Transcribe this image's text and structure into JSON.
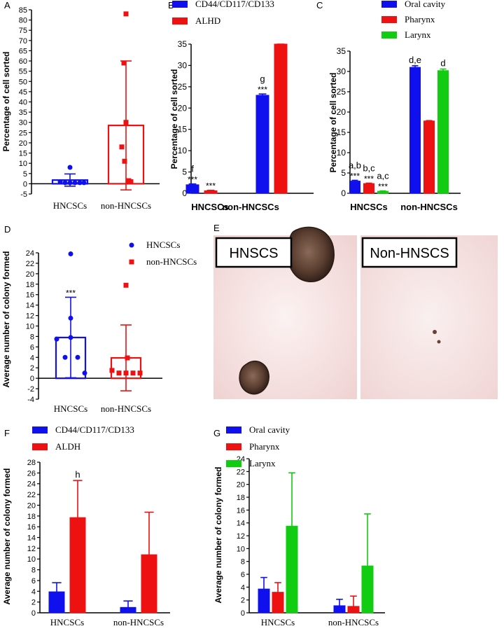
{
  "colors": {
    "blue": "#1010ee",
    "red": "#ee1111",
    "green": "#11cc11",
    "black": "#000000"
  },
  "chart_data": [
    {
      "id": "A",
      "type": "bar",
      "panel_label": "A",
      "ylabel": "Percentage of cell sorted",
      "ylim": [
        -5,
        85
      ],
      "yticks": [
        -5,
        0,
        5,
        10,
        15,
        20,
        25,
        30,
        35,
        40,
        45,
        50,
        55,
        60,
        65,
        70,
        75,
        80,
        85
      ],
      "categories": [
        "HNCSCs",
        "non-HNCSCs"
      ],
      "series": [
        {
          "color": "red",
          "values": [
            1.8,
            28.5
          ],
          "errors": [
            3,
            31.5
          ],
          "annotations": [
            "*",
            ""
          ],
          "points": [
            [
              8,
              1,
              0.5,
              0.5,
              0.5,
              0.5,
              0.5
            ],
            [
              83,
              59,
              30,
              18,
              11,
              1.5,
              1
            ]
          ]
        }
      ]
    },
    {
      "id": "B",
      "type": "bar",
      "panel_label": "B",
      "ylabel": "Percentage of cell sorted",
      "ylim": [
        0,
        35
      ],
      "yticks": [
        0,
        5,
        10,
        15,
        20,
        25,
        30,
        35
      ],
      "categories": [
        "HNCSCs",
        "non-HNCSCs"
      ],
      "legend_position": "top",
      "series": [
        {
          "name": "CD44/CD117/CD133",
          "color": "blue",
          "values": [
            2,
            23
          ],
          "errors": [
            0.2,
            0.3
          ],
          "annotations": [
            "f\n***",
            "g\n***"
          ]
        },
        {
          "name": "ALHD",
          "color": "red",
          "values": [
            0.6,
            35
          ],
          "errors": [
            0.1,
            0
          ],
          "annotations": [
            "***",
            ""
          ]
        }
      ]
    },
    {
      "id": "C",
      "type": "bar",
      "panel_label": "C",
      "ylabel": "Percentage of cell sorted",
      "ylim": [
        0,
        35
      ],
      "yticks": [
        0,
        5,
        10,
        15,
        20,
        25,
        30,
        35
      ],
      "categories": [
        "HNCSCs",
        "non-HNCSCs"
      ],
      "legend_position": "top-right",
      "series": [
        {
          "name": "Oral cavity",
          "color": "blue",
          "values": [
            3,
            31
          ],
          "errors": [
            0.2,
            0.4
          ],
          "annotations": [
            "a,b\n***",
            "d,e"
          ]
        },
        {
          "name": "Pharynx",
          "color": "red",
          "values": [
            2.4,
            17.8
          ],
          "errors": [
            0.1,
            0.1
          ],
          "annotations": [
            "b,c\n***",
            ""
          ]
        },
        {
          "name": "Larynx",
          "color": "green",
          "values": [
            0.5,
            30.2
          ],
          "errors": [
            0.1,
            0.4
          ],
          "annotations": [
            "a,c\n***",
            "d"
          ]
        }
      ]
    },
    {
      "id": "D",
      "type": "bar",
      "panel_label": "D",
      "ylabel": "Average number of colony formed",
      "ylim": [
        -4,
        24
      ],
      "yticks": [
        -4,
        -2,
        0,
        2,
        4,
        6,
        8,
        10,
        12,
        14,
        16,
        18,
        20,
        22,
        24
      ],
      "categories": [
        "HNCSCs",
        "non-HNCSCs"
      ],
      "legend_position": "top-right",
      "series": [
        {
          "name": "HNCSCs",
          "color": "blue",
          "marker": "circle",
          "values": [
            7.8,
            null
          ],
          "errors": [
            7.7,
            null
          ],
          "annotations": [
            "***",
            ""
          ],
          "points": [
            23.8,
            11.5,
            7.8,
            7.5,
            4,
            4,
            1
          ]
        },
        {
          "name": "non-HNCSCs",
          "color": "red",
          "marker": "square",
          "values": [
            null,
            3.9
          ],
          "errors": [
            null,
            6.3
          ],
          "annotations": [
            "",
            ""
          ],
          "points": [
            17.8,
            3.9,
            1.5,
            1,
            1,
            1,
            1
          ]
        }
      ]
    },
    {
      "id": "F",
      "type": "bar",
      "panel_label": "F",
      "ylabel": "Average number of colony formed",
      "ylim": [
        0,
        28
      ],
      "yticks": [
        0,
        2,
        4,
        6,
        8,
        10,
        12,
        14,
        16,
        18,
        20,
        22,
        24,
        26,
        28
      ],
      "categories": [
        "HNCSCs",
        "non-HNCSCs"
      ],
      "legend_position": "top",
      "series": [
        {
          "name": "CD44/CD117/CD133",
          "color": "blue",
          "values": [
            3.9,
            1
          ],
          "errors": [
            1.7,
            1.2
          ],
          "annotations": [
            "",
            ""
          ]
        },
        {
          "name": "ALDH",
          "color": "red",
          "values": [
            17.7,
            10.8
          ],
          "errors": [
            6.9,
            7.9
          ],
          "annotations": [
            "h",
            ""
          ]
        }
      ]
    },
    {
      "id": "G",
      "type": "bar",
      "panel_label": "G",
      "ylabel": "Average number of colony formed",
      "ylim": [
        0,
        24
      ],
      "yticks": [
        0,
        2,
        4,
        6,
        8,
        10,
        12,
        14,
        16,
        18,
        20,
        22,
        24
      ],
      "categories": [
        "HNCSCs",
        "non-HNCSCs"
      ],
      "legend_position": "top",
      "series": [
        {
          "name": "Oral cavity",
          "color": "blue",
          "values": [
            3.7,
            1.1
          ],
          "errors": [
            1.8,
            1
          ],
          "annotations": [
            "",
            ""
          ]
        },
        {
          "name": "Pharynx",
          "color": "red",
          "values": [
            3.2,
            1
          ],
          "errors": [
            1.5,
            1.6
          ],
          "annotations": [
            "",
            ""
          ]
        },
        {
          "name": "Larynx",
          "color": "green",
          "values": [
            13.5,
            7.3
          ],
          "errors": [
            8.3,
            8.1
          ],
          "annotations": [
            "",
            ""
          ]
        }
      ]
    }
  ],
  "panel_e": {
    "panel_label": "E",
    "left_label": "HNSCS",
    "right_label": "Non-HNSCS"
  }
}
